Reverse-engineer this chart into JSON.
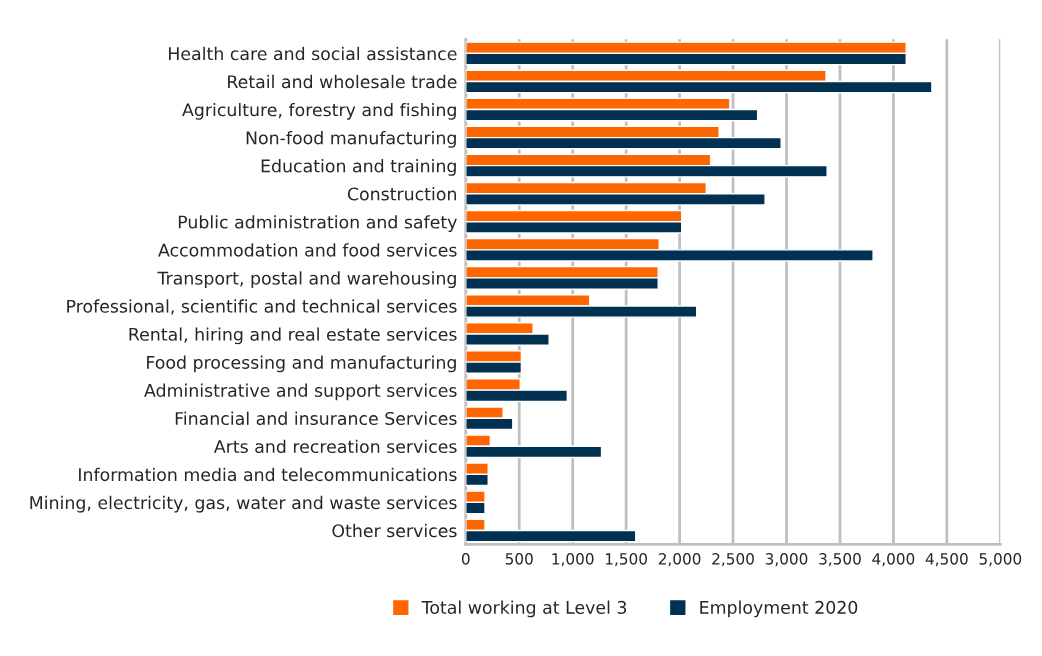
{
  "chart_data": {
    "type": "bar",
    "orientation": "horizontal",
    "categories": [
      "Health care and social assistance",
      "Retail and wholesale trade",
      "Agriculture, forestry and fishing",
      "Non-food manufacturing",
      "Education and training",
      "Construction",
      "Public administration and safety",
      "Accommodation and food services",
      "Transport, postal and warehousing",
      "Professional, scientific and technical services",
      "Rental, hiring and real estate services",
      "Food processing and manufacturing",
      "Administrative and support services",
      "Financial and insurance Services",
      "Arts and recreation services",
      "Information media and telecommunications",
      "Mining, electricity, gas, water and waste services",
      "Other services"
    ],
    "series": [
      {
        "name": "Total working at Level 3",
        "color": "#ff6600",
        "values": [
          4120,
          3370,
          2470,
          2370,
          2290,
          2250,
          2020,
          1810,
          1800,
          1160,
          630,
          520,
          510,
          350,
          230,
          210,
          180,
          180
        ]
      },
      {
        "name": "Employment 2020",
        "color": "#003153",
        "values": [
          4120,
          4360,
          2730,
          2950,
          3380,
          2800,
          2020,
          3810,
          1800,
          2160,
          780,
          520,
          950,
          440,
          1270,
          210,
          180,
          1590
        ]
      }
    ],
    "xlim": [
      0,
      5000
    ],
    "xticks": [
      {
        "value": 0,
        "label": "0"
      },
      {
        "value": 500,
        "label": "500"
      },
      {
        "value": 1000,
        "label": "1,000"
      },
      {
        "value": 1500,
        "label": "1,500"
      },
      {
        "value": 2000,
        "label": "2,000"
      },
      {
        "value": 2500,
        "label": "2,500"
      },
      {
        "value": 3000,
        "label": "3,000"
      },
      {
        "value": 3500,
        "label": "3,500"
      },
      {
        "value": 4000,
        "label": "4,000"
      },
      {
        "value": 4500,
        "label": "4,500"
      },
      {
        "value": 5000,
        "label": "5,000"
      }
    ],
    "grid": "x",
    "legend": "bottom"
  }
}
